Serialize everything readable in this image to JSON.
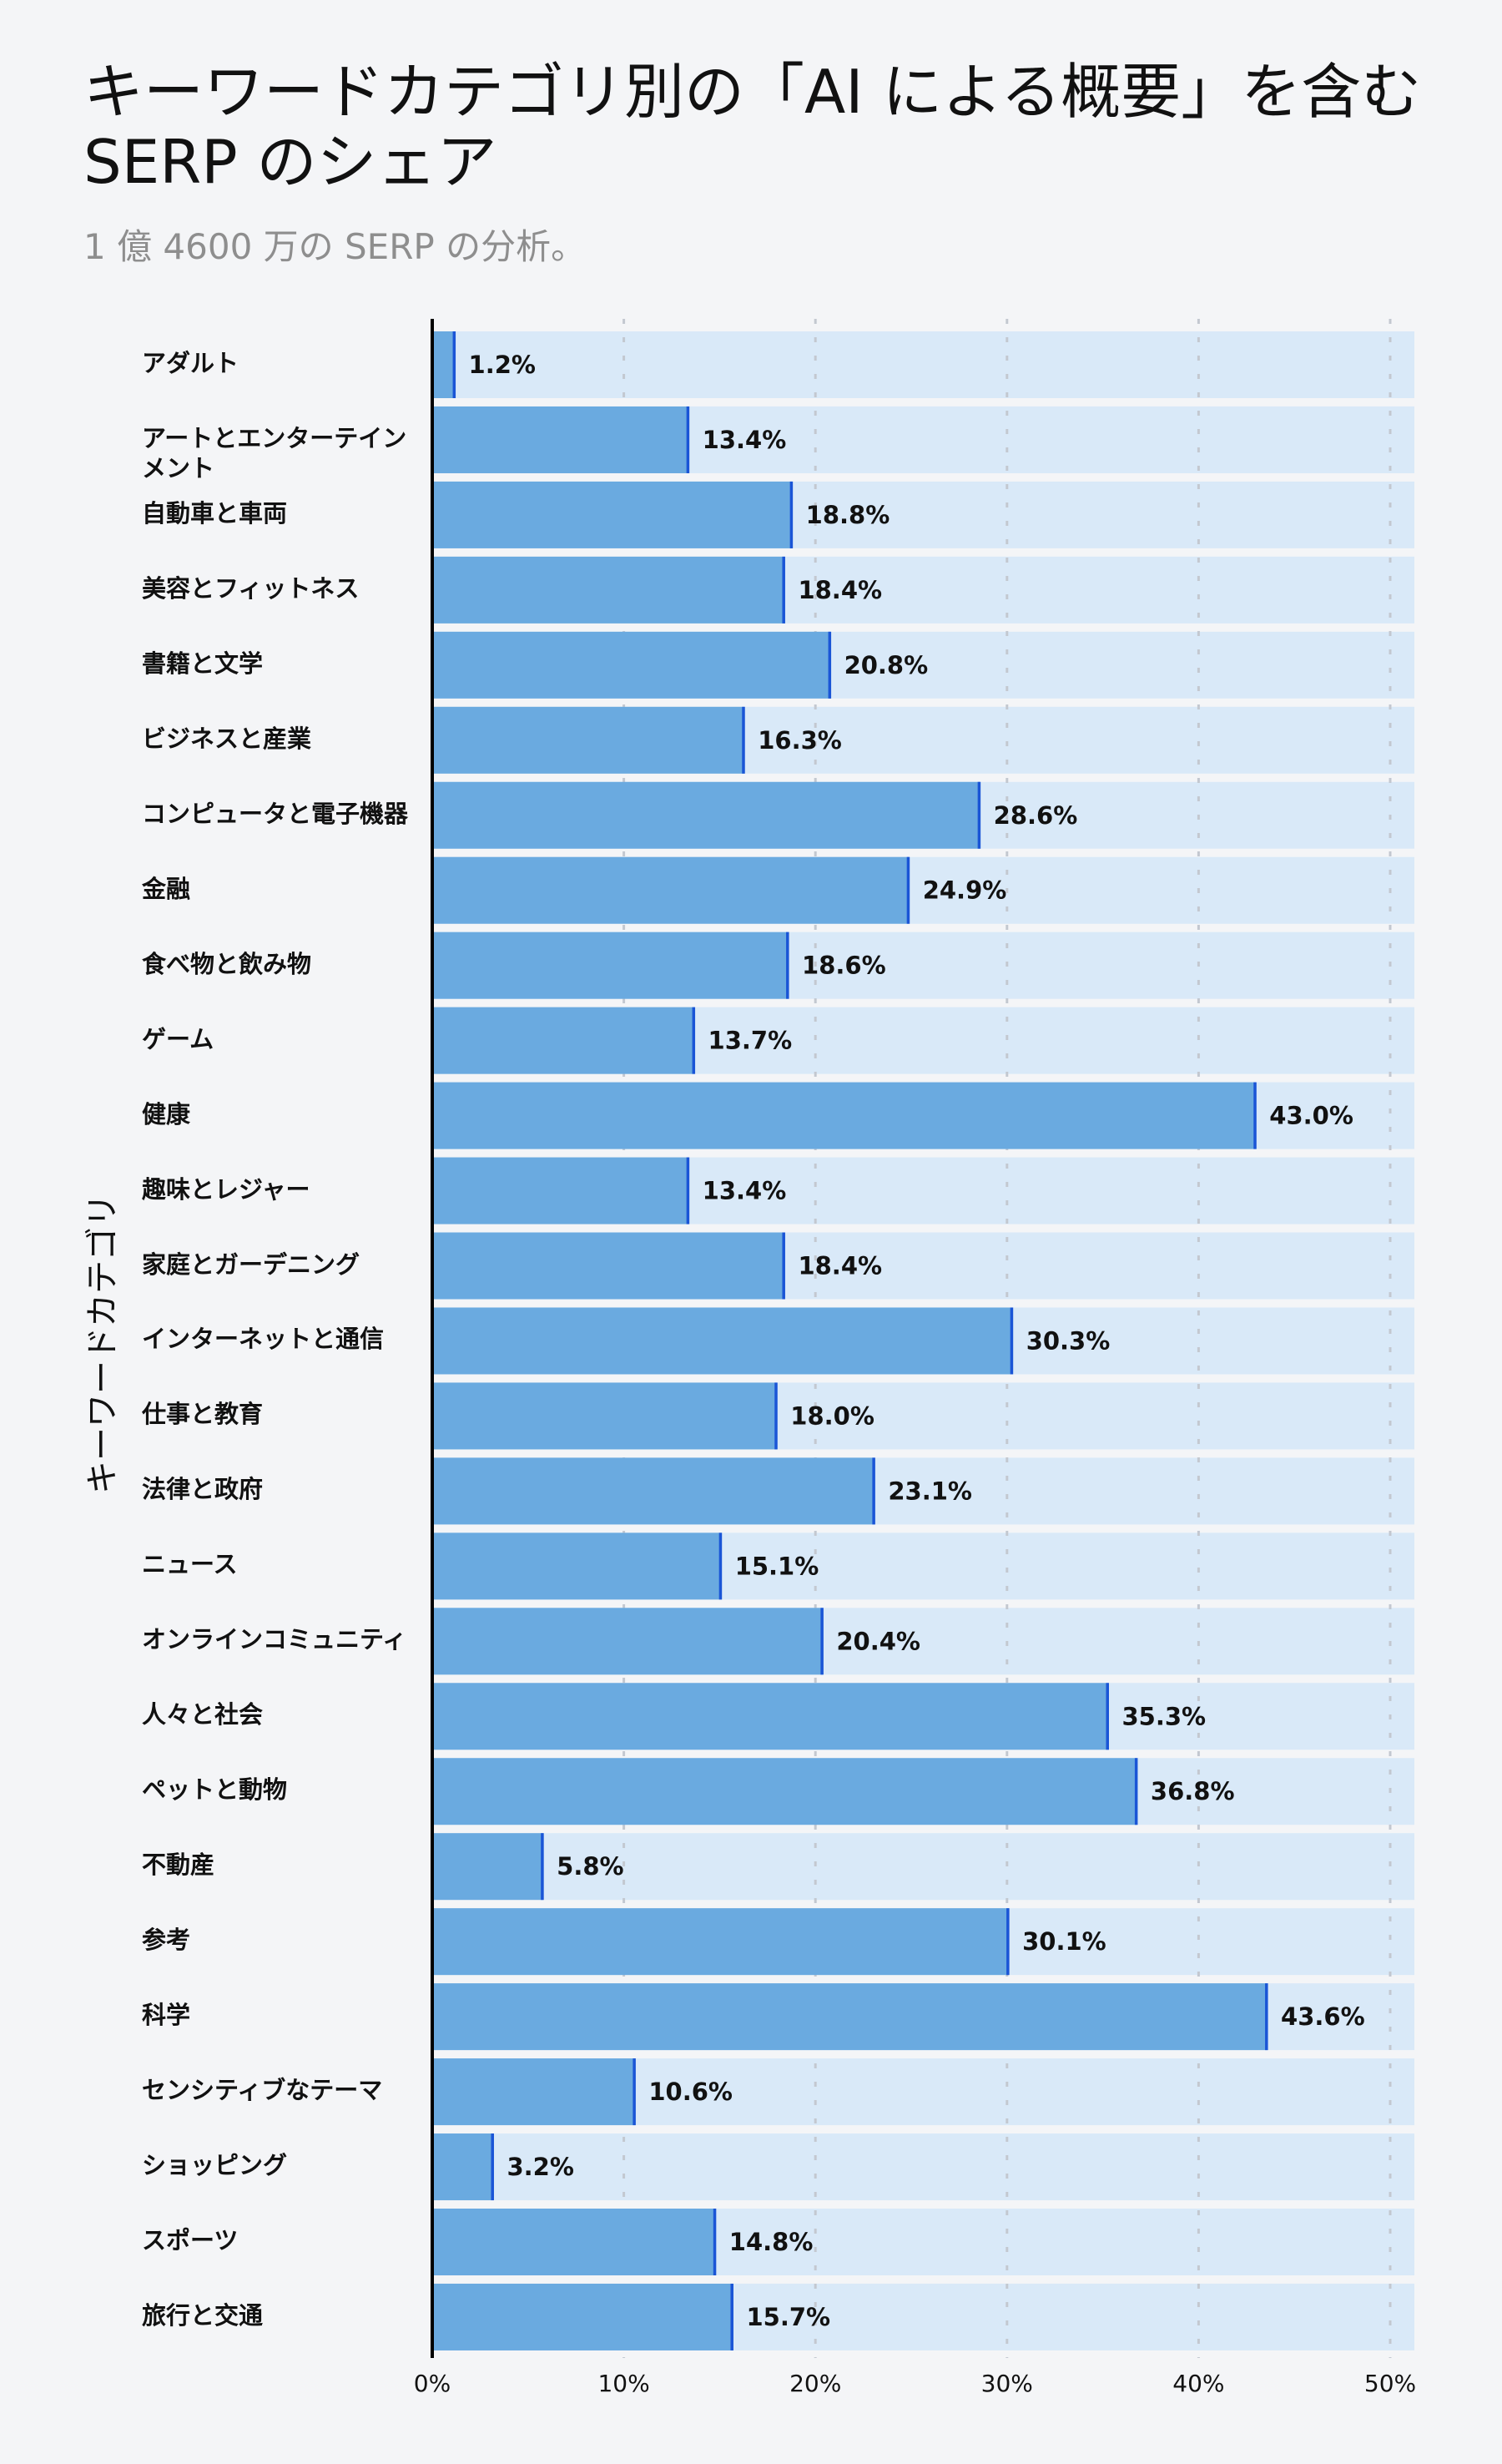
{
  "title": "キーワードカテゴリ別の「AI による概要」を含む SERP のシェア",
  "subtitle": "1 億 4600 万の SERP の分析。",
  "chart_data": {
    "type": "bar",
    "orientation": "horizontal",
    "title": "キーワードカテゴリ別の「AI による概要」を含む SERP のシェア",
    "subtitle": "1 億 4600 万の SERP の分析。",
    "xlabel": "",
    "ylabel": "キーワードカテゴリ",
    "xlim": [
      0,
      51
    ],
    "xticks": [
      "0%",
      "10%",
      "20%",
      "30%",
      "40%",
      "50%"
    ],
    "xtick_values": [
      0,
      10,
      20,
      30,
      40,
      50
    ],
    "grid": "vertical dotted",
    "unit": "%",
    "categories": [
      "アダルト",
      "アートとエンターテインメント",
      "自動車と車両",
      "美容とフィットネス",
      "書籍と文学",
      "ビジネスと産業",
      "コンピュータと電子機器",
      "金融",
      "食べ物と飲み物",
      "ゲーム",
      "健康",
      "趣味とレジャー",
      "家庭とガーデニング",
      "インターネットと通信",
      "仕事と教育",
      "法律と政府",
      "ニュース",
      "オンラインコミュニティ",
      "人々と社会",
      "ペットと動物",
      "不動産",
      "参考",
      "科学",
      "センシティブなテーマ",
      "ショッピング",
      "スポーツ",
      "旅行と交通"
    ],
    "values": [
      1.2,
      13.4,
      18.8,
      18.4,
      20.8,
      16.3,
      28.6,
      24.9,
      18.6,
      13.7,
      43.0,
      13.4,
      18.4,
      30.3,
      18.0,
      23.1,
      15.1,
      20.4,
      35.3,
      36.8,
      5.8,
      30.1,
      43.6,
      10.6,
      3.2,
      14.8,
      15.7
    ],
    "value_labels": [
      "1.2%",
      "13.4%",
      "18.8%",
      "18.4%",
      "20.8%",
      "16.3%",
      "28.6%",
      "24.9%",
      "18.6%",
      "13.7%",
      "43.0%",
      "13.4%",
      "18.4%",
      "30.3%",
      "18.0%",
      "23.1%",
      "15.1%",
      "20.4%",
      "35.3%",
      "36.8%",
      "5.8%",
      "30.1%",
      "43.6%",
      "10.6%",
      "3.2%",
      "14.8%",
      "15.7%"
    ],
    "colors": {
      "bar": "#6aaae0",
      "track": "#d9e9f8",
      "bar_end": "#1a55d6",
      "grid": "#c3c8d0",
      "axis": "#000000"
    }
  }
}
